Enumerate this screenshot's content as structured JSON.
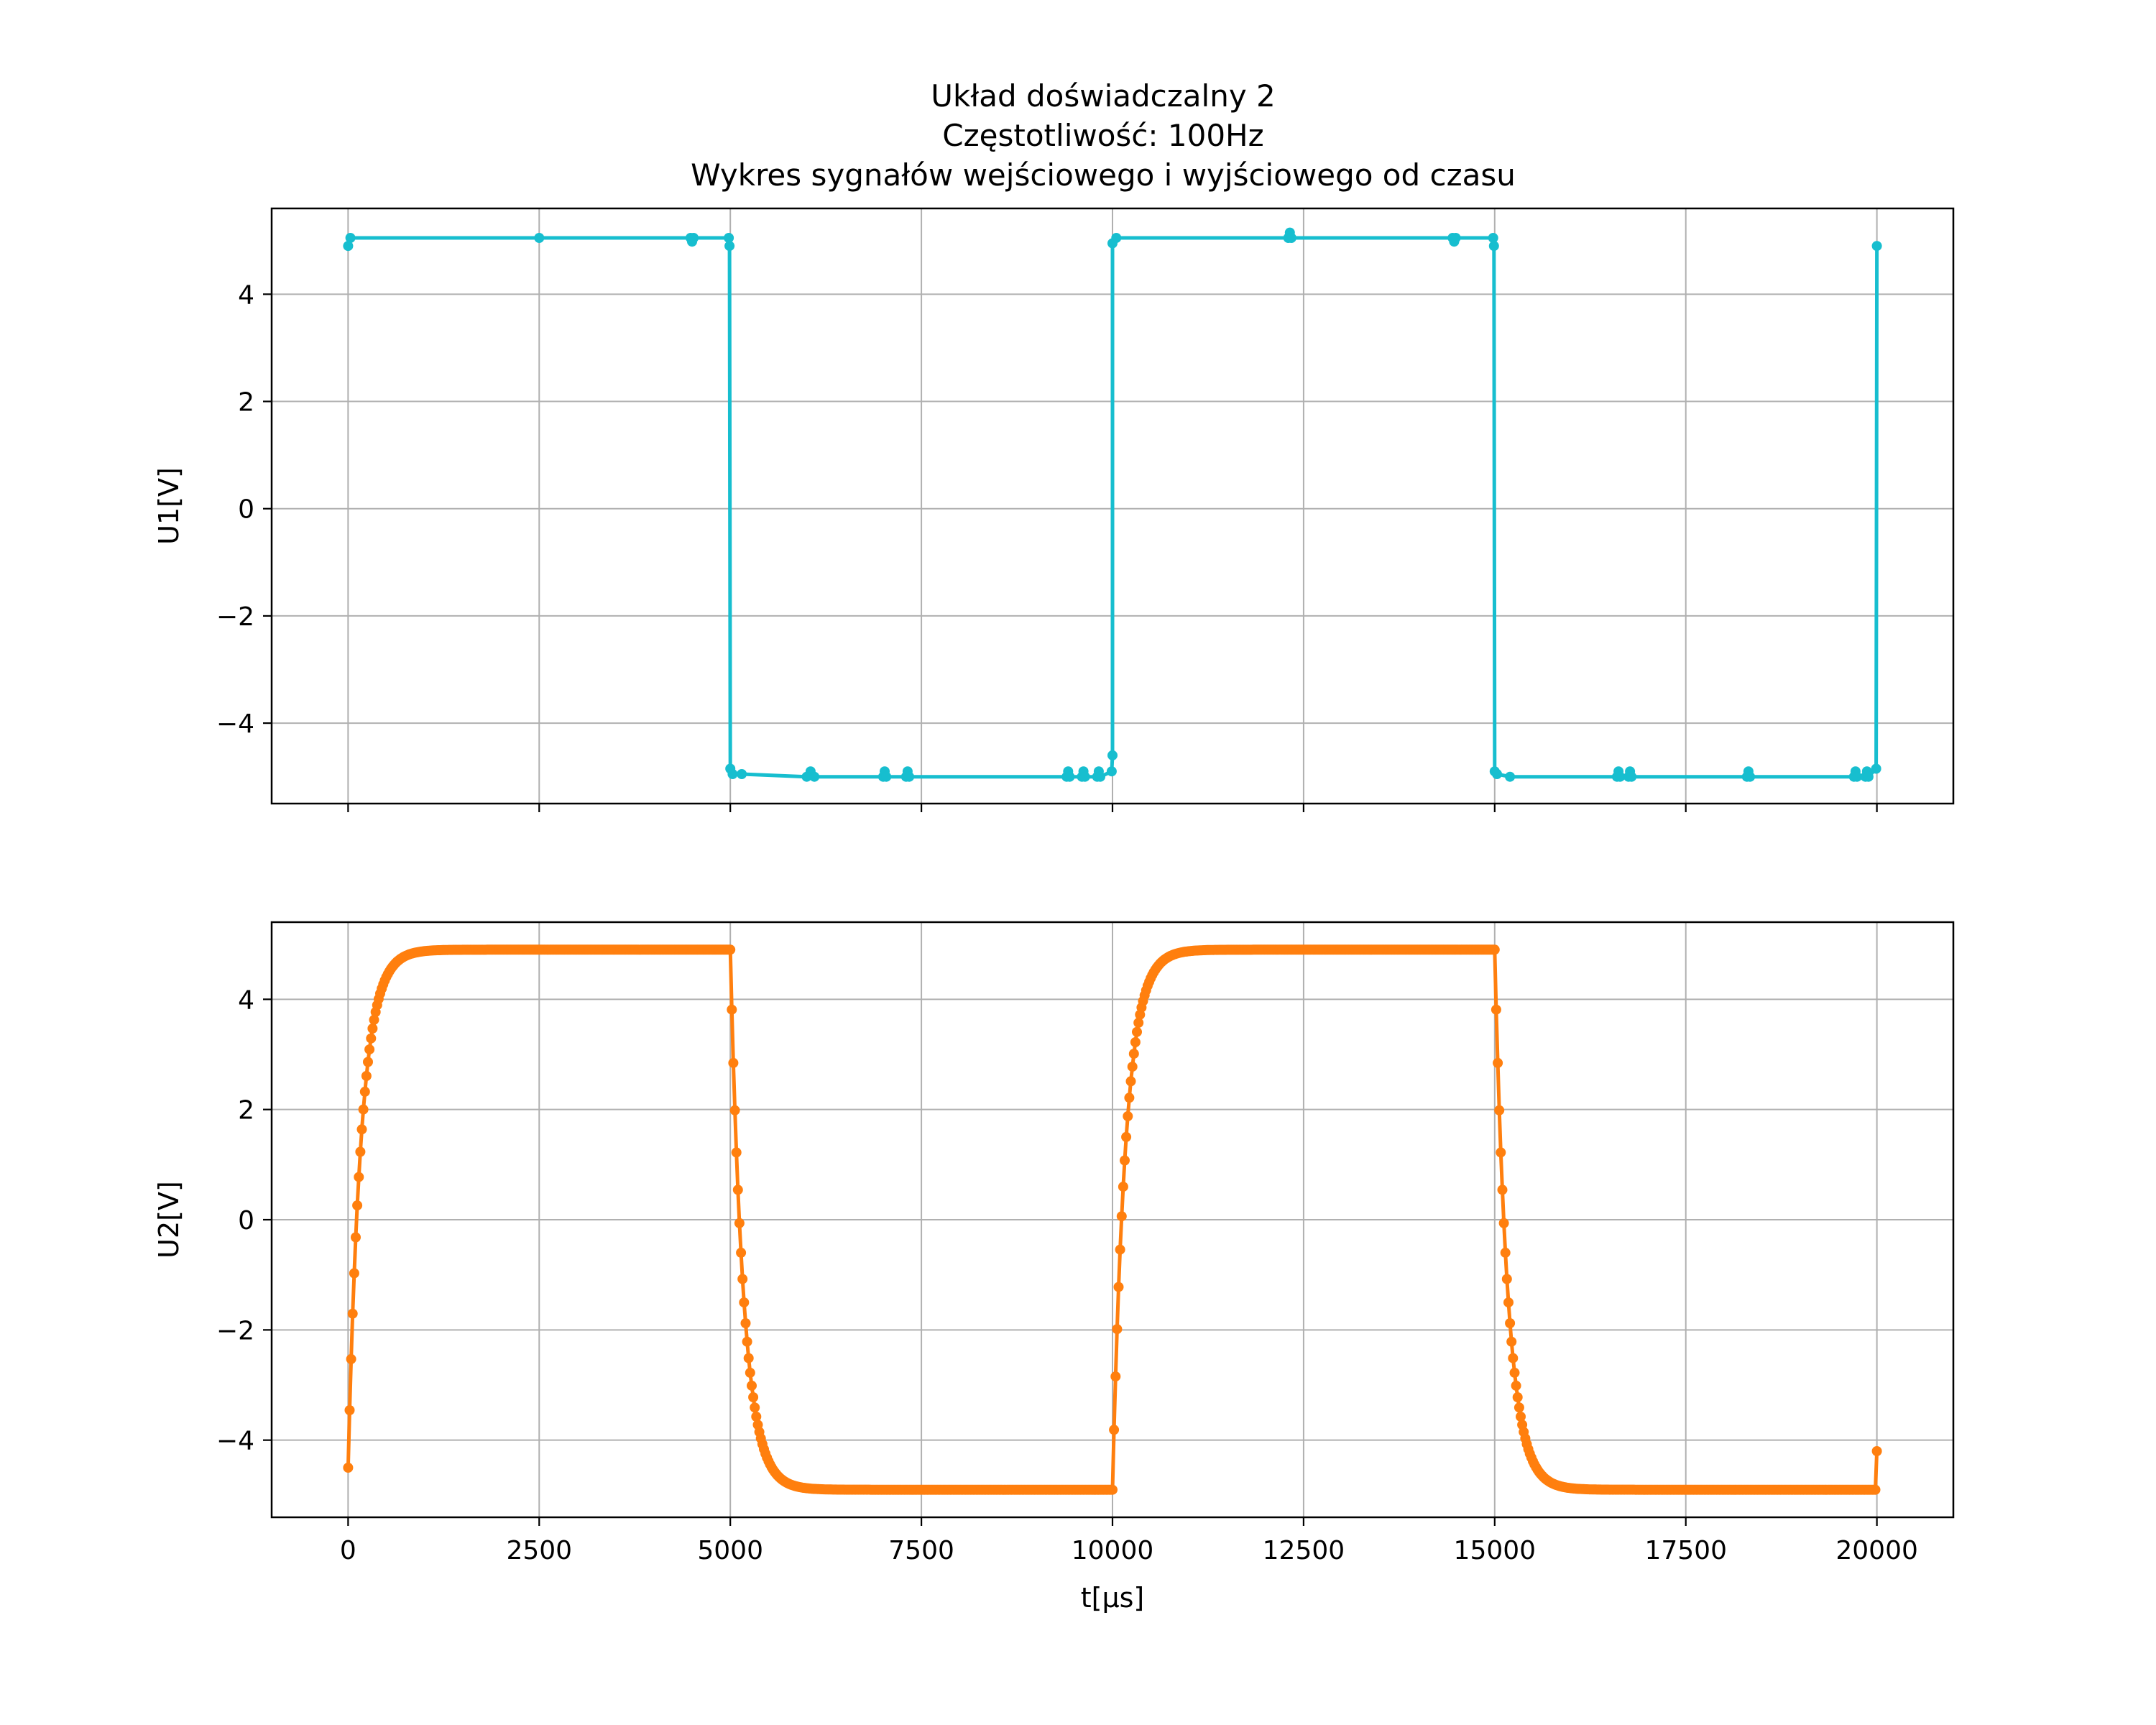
{
  "title_lines": [
    "Układ doświadczalny 2",
    "Częstotliwość: 100Hz",
    "Wykres sygnałów wejściowego i wyjściowego od czasu"
  ],
  "chart_data": [
    {
      "type": "line",
      "ylabel": "U1[V]",
      "xlabel": "",
      "xlim": [
        -1000,
        21000
      ],
      "ylim": [
        -5.5,
        5.6
      ],
      "xticks": [
        0,
        2500,
        5000,
        7500,
        10000,
        12500,
        15000,
        17500,
        20000
      ],
      "yticks": [
        -4,
        -2,
        0,
        2,
        4
      ],
      "ytick_labels": [
        "−4",
        "−2",
        "0",
        "2",
        "4"
      ],
      "grid": true,
      "series": [
        {
          "color": "#17becf",
          "marker": "dot",
          "points": [
            [
              0,
              4.9
            ],
            [
              30,
              5.05
            ],
            [
              2500,
              5.05
            ],
            [
              4480,
              5.05
            ],
            [
              4500,
              4.98
            ],
            [
              4520,
              5.05
            ],
            [
              4980,
              5.05
            ],
            [
              4990,
              4.9
            ],
            [
              5000,
              -4.85
            ],
            [
              5030,
              -4.95
            ],
            [
              5150,
              -4.95
            ],
            [
              6000,
              -5.0
            ],
            [
              6050,
              -4.9
            ],
            [
              6100,
              -5.0
            ],
            [
              7000,
              -5.0
            ],
            [
              7020,
              -4.9
            ],
            [
              7040,
              -5.0
            ],
            [
              7300,
              -5.0
            ],
            [
              7320,
              -4.9
            ],
            [
              7340,
              -5.0
            ],
            [
              9400,
              -5.0
            ],
            [
              9420,
              -4.9
            ],
            [
              9440,
              -5.0
            ],
            [
              9600,
              -5.0
            ],
            [
              9620,
              -4.9
            ],
            [
              9640,
              -5.0
            ],
            [
              9800,
              -5.0
            ],
            [
              9820,
              -4.9
            ],
            [
              9840,
              -5.0
            ],
            [
              9990,
              -4.9
            ],
            [
              10000,
              -4.6
            ],
            [
              10000,
              4.95
            ],
            [
              10050,
              5.05
            ],
            [
              12300,
              5.05
            ],
            [
              12320,
              5.15
            ],
            [
              12340,
              5.05
            ],
            [
              14450,
              5.05
            ],
            [
              14470,
              4.98
            ],
            [
              14490,
              5.05
            ],
            [
              14980,
              5.05
            ],
            [
              14990,
              4.9
            ],
            [
              15000,
              -4.9
            ],
            [
              15030,
              -4.95
            ],
            [
              15200,
              -5.0
            ],
            [
              16600,
              -5.0
            ],
            [
              16620,
              -4.9
            ],
            [
              16640,
              -5.0
            ],
            [
              16750,
              -5.0
            ],
            [
              16770,
              -4.9
            ],
            [
              16790,
              -5.0
            ],
            [
              18300,
              -5.0
            ],
            [
              18320,
              -4.9
            ],
            [
              18340,
              -5.0
            ],
            [
              19700,
              -5.0
            ],
            [
              19720,
              -4.9
            ],
            [
              19740,
              -5.0
            ],
            [
              19850,
              -5.0
            ],
            [
              19870,
              -4.9
            ],
            [
              19890,
              -5.0
            ],
            [
              19990,
              -4.85
            ],
            [
              20000,
              4.9
            ]
          ]
        }
      ]
    },
    {
      "type": "line",
      "ylabel": "U2[V]",
      "xlabel": "t[$\\mu$s]",
      "xlabel_display": "t[μs]",
      "xlim": [
        -1000,
        21000
      ],
      "ylim": [
        -5.4,
        5.4
      ],
      "xticks": [
        0,
        2500,
        5000,
        7500,
        10000,
        12500,
        15000,
        17500,
        20000
      ],
      "xtick_labels": [
        "0",
        "2500",
        "5000",
        "7500",
        "10000",
        "12500",
        "15000",
        "17500",
        "20000"
      ],
      "yticks": [
        -4,
        -2,
        0,
        2,
        4
      ],
      "ytick_labels": [
        "−4",
        "−2",
        "0",
        "2",
        "4"
      ],
      "grid": true,
      "series": [
        {
          "color": "#ff7f0e",
          "marker": "dot",
          "model": {
            "kind": "rc_square_response",
            "period_us": 10000,
            "high_v": 4.9,
            "low_v": -4.9,
            "tau_us": 170,
            "start_v": -4.5,
            "t_end_us": 20000,
            "sample_step_us": 20,
            "end_value_v": -4.2
          }
        }
      ]
    }
  ]
}
